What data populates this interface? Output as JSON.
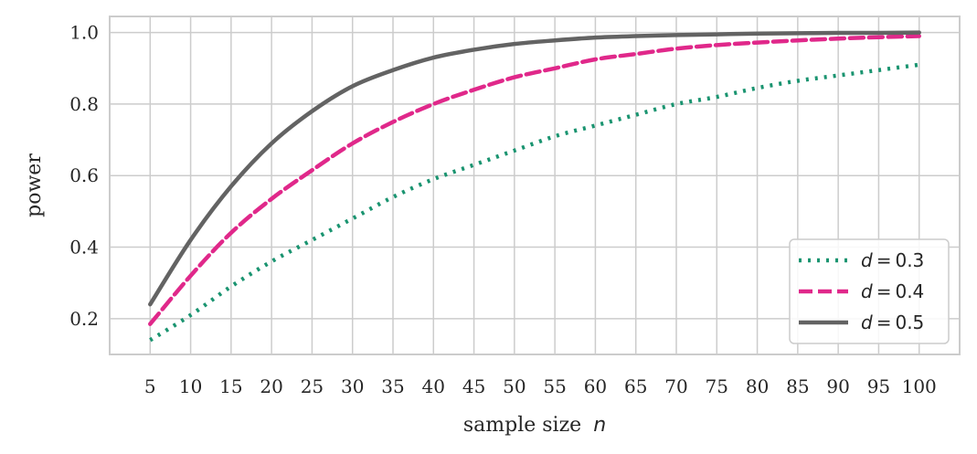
{
  "chart_data": {
    "type": "line",
    "xlabel": "sample size",
    "xlabel_var": "n",
    "ylabel": "power",
    "xlim": [
      0,
      105
    ],
    "ylim": [
      0.1,
      1.045
    ],
    "xticks": [
      5,
      10,
      15,
      20,
      25,
      30,
      35,
      40,
      45,
      50,
      55,
      60,
      65,
      70,
      75,
      80,
      85,
      90,
      95,
      100
    ],
    "yticks": [
      0.2,
      0.4,
      0.6,
      0.8,
      1.0
    ],
    "ytick_labels": [
      "0.2",
      "0.4",
      "0.6",
      "0.8",
      "1.0"
    ],
    "grid": true,
    "legend_position": "lower-right",
    "x": [
      5,
      10,
      15,
      20,
      25,
      30,
      35,
      40,
      45,
      50,
      55,
      60,
      65,
      70,
      75,
      80,
      85,
      90,
      95,
      100
    ],
    "series": [
      {
        "name": "d = 0.3",
        "legend_var": "d",
        "legend_value": "0.3",
        "color": "#1a9470",
        "style": "dotted",
        "values": [
          0.14,
          0.21,
          0.29,
          0.36,
          0.42,
          0.48,
          0.54,
          0.59,
          0.63,
          0.67,
          0.71,
          0.74,
          0.77,
          0.8,
          0.82,
          0.845,
          0.865,
          0.88,
          0.895,
          0.91
        ]
      },
      {
        "name": "d = 0.4",
        "legend_var": "d",
        "legend_value": "0.4",
        "color": "#e0288a",
        "style": "dashed",
        "values": [
          0.185,
          0.32,
          0.44,
          0.535,
          0.615,
          0.69,
          0.75,
          0.8,
          0.84,
          0.875,
          0.9,
          0.925,
          0.94,
          0.955,
          0.965,
          0.972,
          0.978,
          0.983,
          0.987,
          0.99
        ]
      },
      {
        "name": "d = 0.5",
        "legend_var": "d",
        "legend_value": "0.5",
        "color": "#636363",
        "style": "solid",
        "values": [
          0.24,
          0.42,
          0.57,
          0.69,
          0.78,
          0.85,
          0.895,
          0.93,
          0.952,
          0.968,
          0.978,
          0.986,
          0.99,
          0.993,
          0.995,
          0.997,
          0.998,
          0.999,
          0.999,
          1.0
        ]
      }
    ]
  }
}
